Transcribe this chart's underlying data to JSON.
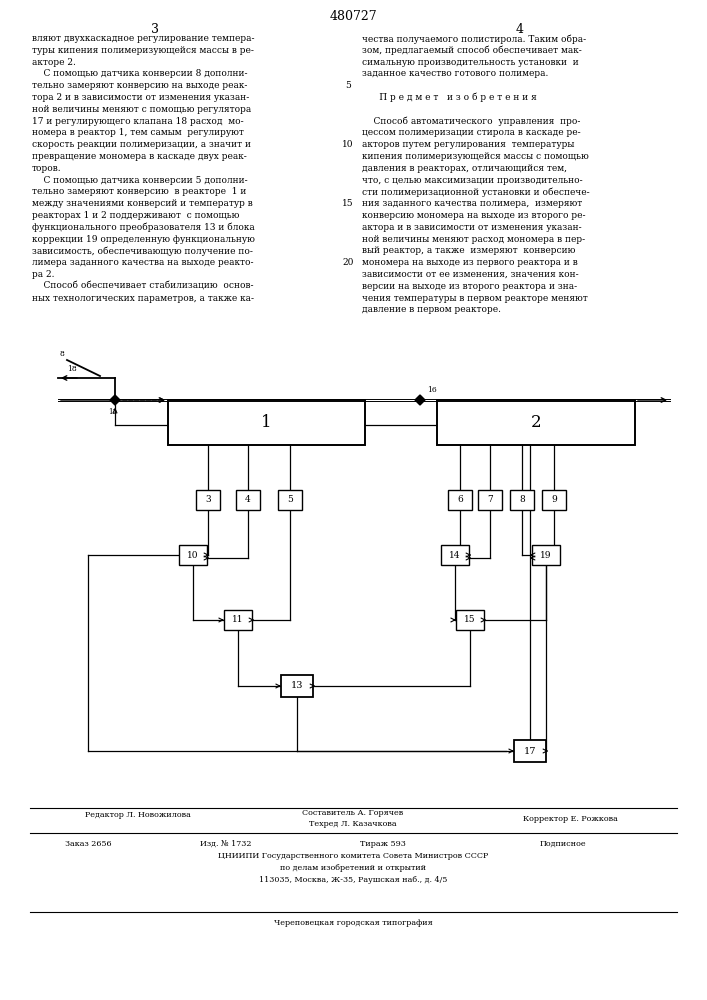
{
  "patent_number": "480727",
  "page_left": "3",
  "page_right": "4",
  "left_lines": [
    "вляют двухкаскадное регулирование темпера-",
    "туры кипения полимеризующейся массы в ре-",
    "акторе 2.",
    "    С помощью датчика конверсии 8 дополни-",
    "тельно замеряют конверсию на выходе реак-",
    "тора 2 и в зависимости от изменения указан-",
    "ной величины меняют с помощью регулятора",
    "17 и регулирующего клапана 18 расход  мо-",
    "номера в реактор 1, тем самым  регулируют",
    "скорость реакции полимеризации, а значит и",
    "превращение мономера в каскаде двух реак-",
    "торов.",
    "    С помощью датчика конверсии 5 дополни-",
    "тельно замеряют конверсию  в реакторе  1 и",
    "между значениями конверсий и температур в",
    "реакторах 1 и 2 поддерживают  с помощью",
    "функционального преобразователя 13 и блока",
    "коррекции 19 определенную функциональную",
    "зависимость, обеспечивающую получение по-",
    "лимера заданного качества на выходе реакто-",
    "ра 2.",
    "    Способ обеспечивает стабилизацию  основ-",
    "ных технологических параметров, а также ка-"
  ],
  "right_lines": [
    "чества получаемого полистирола. Таким обра-",
    "зом, предлагаемый способ обеспечивает мак-",
    "симальную производительность установки  и",
    "заданное качество готового полимера.",
    "",
    "      П р е д м е т   и з о б р е т е н и я",
    "",
    "    Способ автоматического  управления  про-",
    "цессом полимеризации стирола в каскаде ре-",
    "акторов путем регулирования  температуры",
    "кипения полимеризующейся массы с помощью",
    "давления в реакторах, отличающийся тем,",
    "что, с целью максимизации производительно-",
    "сти полимеризационной установки и обеспече-",
    "ния заданного качества полимера,  измеряют",
    "конверсию мономера на выходе из второго ре-",
    "актора и в зависимости от изменения указан-",
    "ной величины меняют расход мономера в пер-",
    "вый реактор, а также  измеряют  конверсию",
    "мономера на выходе из первого реактора и в",
    "зависимости от ее изменения, значения кон-",
    "версии на выходе из второго реактора и зна-",
    "чения температуры в первом реакторе меняют",
    "давление в первом реакторе."
  ],
  "line_number_indices": [
    4,
    9,
    14,
    19
  ],
  "line_numbers": [
    "5",
    "10",
    "15",
    "20"
  ],
  "footer_editor": "Редактор Л. Новожилова",
  "footer_composer": "Составитель А. Горячев",
  "footer_techred": "Техред Л. Казачкова",
  "footer_corrector": "Корректор Е. Рожкова",
  "footer_order": "Заказ 2656",
  "footer_issue": "Изд. № 1732",
  "footer_circulation": "Тираж 593",
  "footer_subscription": "Подписное",
  "footer_org": "ЦНИИПИ Государственного комитета Совета Министров СССР",
  "footer_dept": "по делам изобретений и открытий",
  "footer_address": "113035, Москва, Ж-35, Раушская наб., д. 4/5",
  "footer_printing": "Череповецкая городская типография"
}
